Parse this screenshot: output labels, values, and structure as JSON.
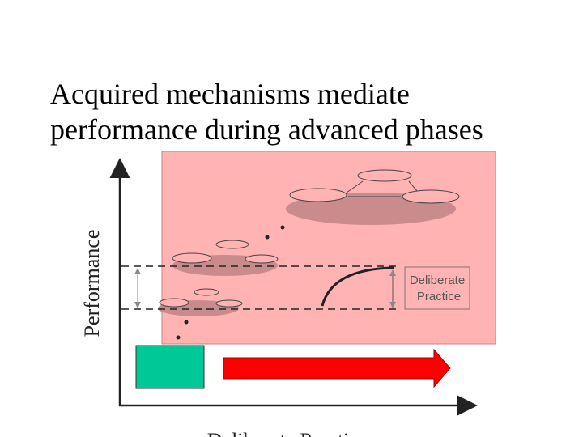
{
  "title": {
    "lines": [
      "Acquired mechanisms mediate",
      "performance during advanced phases"
    ]
  },
  "diagram": {
    "y_axis_label": "Performance",
    "x_axis_label": "Deliberate Practice",
    "box_label": {
      "lines": [
        "Deliberate",
        "Practice"
      ]
    }
  }
}
